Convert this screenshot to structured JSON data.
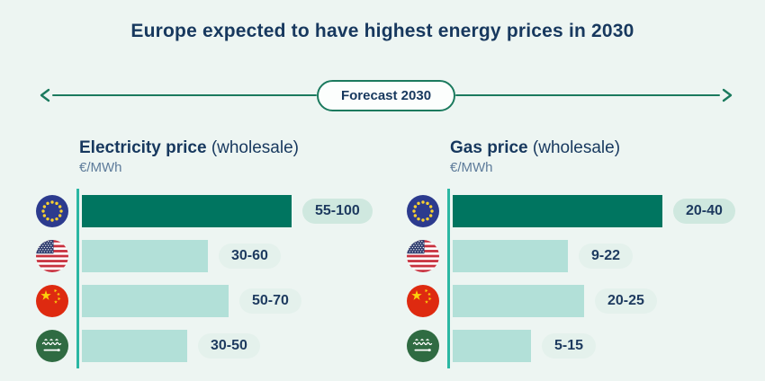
{
  "title": "Europe expected to have highest energy prices in 2030",
  "timeline": {
    "label": "Forecast 2030"
  },
  "colors": {
    "background": "#edf5f2",
    "heading_text": "#17385e",
    "timeline_green": "#1b7a5e",
    "axis_teal": "#2bb7a3",
    "bar_highlight": "#007560",
    "bar_default": "#b2e0d8",
    "pill_highlight_bg": "#cfe8df",
    "pill_default_bg": "#e4f1ec",
    "unit_text": "#5d7b9a"
  },
  "chart_data": [
    {
      "type": "bar",
      "title": "Electricity price",
      "title_suffix": "(wholesale)",
      "ylabel": "€/MWh",
      "categories": [
        "European Union",
        "United States",
        "China",
        "Saudi Arabia"
      ],
      "flags": [
        "eu",
        "us",
        "cn",
        "sa"
      ],
      "values_range": [
        [
          55,
          100
        ],
        [
          30,
          60
        ],
        [
          50,
          70
        ],
        [
          30,
          50
        ]
      ],
      "bar_lengths": [
        100,
        60,
        70,
        50
      ],
      "labels": [
        "55-100",
        "30-60",
        "50-70",
        "30-50"
      ],
      "highlighted_index": 0,
      "xmax": 100,
      "legend": "none",
      "grid": false
    },
    {
      "type": "bar",
      "title": "Gas price",
      "title_suffix": "(wholesale)",
      "ylabel": "€/MWh",
      "categories": [
        "European Union",
        "United States",
        "China",
        "Saudi Arabia"
      ],
      "flags": [
        "eu",
        "us",
        "cn",
        "sa"
      ],
      "values_range": [
        [
          20,
          40
        ],
        [
          9,
          22
        ],
        [
          20,
          25
        ],
        [
          5,
          15
        ]
      ],
      "bar_lengths": [
        40,
        22,
        25,
        15
      ],
      "labels": [
        "20-40",
        "9-22",
        "20-25",
        "5-15"
      ],
      "highlighted_index": 0,
      "xmax": 40,
      "legend": "none",
      "grid": false
    }
  ]
}
